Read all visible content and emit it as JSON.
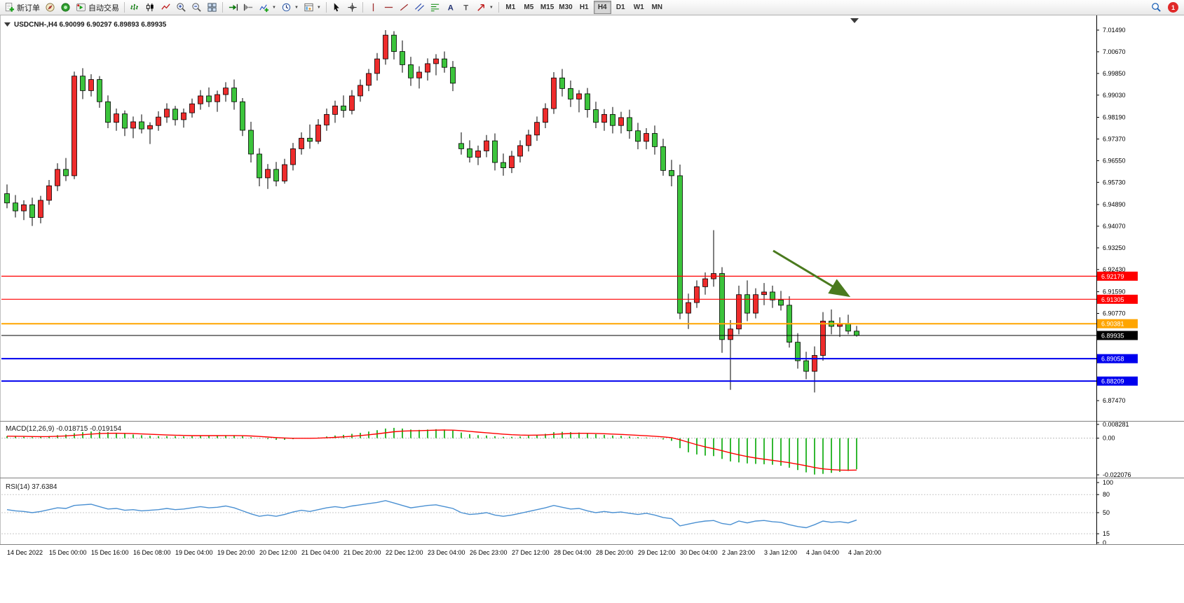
{
  "toolbar": {
    "new_order_label": "新订单",
    "auto_trading_label": "自动交易",
    "timeframes": [
      "M1",
      "M5",
      "M15",
      "M30",
      "H1",
      "H4",
      "D1",
      "W1",
      "MN"
    ],
    "active_timeframe": "H4",
    "notification_count": "1"
  },
  "chart_header": {
    "symbol": "USDCNH-,H4",
    "open": "6.90099",
    "high": "6.90297",
    "low": "6.89893",
    "close": "6.89935"
  },
  "chart_data": {
    "type": "candlestick",
    "symbol": "USDCNH-",
    "timeframe": "H4",
    "price_scale": {
      "top": 7.01834,
      "bottom": 6.86729
    },
    "price_axis_labels": [
      "7.01490",
      "7.00670",
      "6.99850",
      "6.99030",
      "6.98190",
      "6.97370",
      "6.96550",
      "6.95730",
      "6.94890",
      "6.94070",
      "6.93250",
      "6.92430",
      "6.91590",
      "6.90770",
      "6.87470"
    ],
    "bull_color": "#ee2c2c",
    "bear_color": "#3cc43c",
    "levels": [
      {
        "label": "6.92179",
        "price": 6.92179,
        "color": "#ff0000",
        "width": 1.2
      },
      {
        "label": "6.91305",
        "price": 6.91305,
        "color": "#ff0000",
        "width": 1.2
      },
      {
        "label": "6.90381",
        "price": 6.90381,
        "color": "#ffa500",
        "width": 2
      },
      {
        "label": "6.89935",
        "price": 6.89935,
        "color": "#000000",
        "width": 1
      },
      {
        "label": "6.89058",
        "price": 6.89058,
        "color": "#0000ee",
        "width": 2
      },
      {
        "label": "6.88209",
        "price": 6.88209,
        "color": "#0000ee",
        "width": 2
      }
    ],
    "x_labels": [
      "14 Dec 2022",
      "15 Dec 00:00",
      "15 Dec 16:00",
      "16 Dec 08:00",
      "19 Dec 04:00",
      "19 Dec 20:00",
      "20 Dec 12:00",
      "21 Dec 04:00",
      "21 Dec 20:00",
      "22 Dec 12:00",
      "23 Dec 04:00",
      "26 Dec 23:00",
      "27 Dec 12:00",
      "28 Dec 04:00",
      "28 Dec 20:00",
      "29 Dec 12:00",
      "30 Dec 04:00",
      "2 Jan 23:00",
      "3 Jan 12:00",
      "4 Jan 04:00",
      "4 Jan 20:00"
    ],
    "candles": [
      [
        6.953,
        6.9565,
        6.9475,
        6.9495
      ],
      [
        6.9495,
        6.9525,
        6.944,
        6.9465
      ],
      [
        6.9465,
        6.9505,
        6.943,
        6.9488
      ],
      [
        6.9488,
        6.9515,
        6.9408,
        6.944
      ],
      [
        6.944,
        6.9522,
        6.9418,
        6.9505
      ],
      [
        6.9505,
        6.9582,
        6.9488,
        6.956
      ],
      [
        6.956,
        6.9645,
        6.954,
        6.9622
      ],
      [
        6.9622,
        6.9665,
        6.9578,
        6.9598
      ],
      [
        6.9598,
        6.9992,
        6.9585,
        6.9975
      ],
      [
        6.9975,
        7.0005,
        6.9888,
        6.992
      ],
      [
        6.992,
        6.9982,
        6.9898,
        6.9962
      ],
      [
        6.9962,
        6.9975,
        6.9855,
        6.9878
      ],
      [
        6.9878,
        6.9902,
        6.9778,
        6.98
      ],
      [
        6.98,
        6.9852,
        6.9768,
        6.9832
      ],
      [
        6.9832,
        6.9845,
        6.9748,
        6.9778
      ],
      [
        6.9778,
        6.9822,
        6.974,
        6.9802
      ],
      [
        6.9802,
        6.983,
        6.9758,
        6.9775
      ],
      [
        6.9775,
        6.98,
        6.9718,
        6.9788
      ],
      [
        6.9788,
        6.9842,
        6.9768,
        6.982
      ],
      [
        6.982,
        6.9872,
        6.9798,
        6.985
      ],
      [
        6.985,
        6.9862,
        6.9788,
        6.981
      ],
      [
        6.981,
        6.9852,
        6.978,
        6.9836
      ],
      [
        6.9836,
        6.989,
        6.9818,
        6.987
      ],
      [
        6.987,
        6.9922,
        6.9848,
        6.99
      ],
      [
        6.99,
        6.9932,
        6.9858,
        6.9878
      ],
      [
        6.9878,
        6.992,
        6.984,
        6.9905
      ],
      [
        6.9905,
        6.9952,
        6.9878,
        6.993
      ],
      [
        6.993,
        6.9962,
        6.9848,
        6.9878
      ],
      [
        6.9878,
        6.9892,
        6.9748,
        6.977
      ],
      [
        6.977,
        6.9802,
        6.9648,
        6.968
      ],
      [
        6.968,
        6.9702,
        6.9558,
        6.959
      ],
      [
        6.959,
        6.9642,
        6.9548,
        6.9622
      ],
      [
        6.9622,
        6.965,
        6.9558,
        6.9578
      ],
      [
        6.9578,
        6.9662,
        6.9568,
        6.964
      ],
      [
        6.964,
        6.9722,
        6.9618,
        6.97
      ],
      [
        6.97,
        6.9762,
        6.9678,
        6.974
      ],
      [
        6.974,
        6.9792,
        6.97,
        6.9728
      ],
      [
        6.9728,
        6.9812,
        6.9718,
        6.979
      ],
      [
        6.979,
        6.9852,
        6.9768,
        6.983
      ],
      [
        6.983,
        6.9882,
        6.9798,
        6.9862
      ],
      [
        6.9862,
        6.9902,
        6.9818,
        6.9845
      ],
      [
        6.9845,
        6.9922,
        6.983,
        6.99
      ],
      [
        6.99,
        6.9962,
        6.9878,
        6.994
      ],
      [
        6.994,
        7.0002,
        6.9918,
        6.9985
      ],
      [
        6.9985,
        7.0062,
        6.9958,
        7.004
      ],
      [
        7.004,
        7.0149,
        7.0018,
        7.013
      ],
      [
        7.013,
        7.0145,
        7.0038,
        7.0068
      ],
      [
        7.0068,
        7.011,
        6.9988,
        7.0018
      ],
      [
        7.0018,
        7.0048,
        6.9938,
        6.9968
      ],
      [
        6.9968,
        7.0012,
        6.9928,
        6.999
      ],
      [
        6.999,
        7.0042,
        6.9958,
        7.0022
      ],
      [
        7.0022,
        7.0058,
        6.9978,
        7.004
      ],
      [
        7.004,
        7.0068,
        6.9988,
        7.0008
      ],
      [
        7.0008,
        7.0032,
        6.9918,
        6.9948
      ],
      [
        6.972,
        6.9762,
        6.9678,
        6.97
      ],
      [
        6.97,
        6.9732,
        6.9648,
        6.9668
      ],
      [
        6.9668,
        6.9712,
        6.9638,
        6.9692
      ],
      [
        6.9692,
        6.9752,
        6.9668,
        6.973
      ],
      [
        6.973,
        6.9758,
        6.9618,
        6.9648
      ],
      [
        6.9648,
        6.9682,
        6.9598,
        6.9628
      ],
      [
        6.9628,
        6.9692,
        6.9608,
        6.9672
      ],
      [
        6.9672,
        6.9732,
        6.9648,
        6.9712
      ],
      [
        6.9712,
        6.9772,
        6.969,
        6.9752
      ],
      [
        6.9752,
        6.9822,
        6.973,
        6.98
      ],
      [
        6.98,
        6.9872,
        6.9778,
        6.9852
      ],
      [
        6.9852,
        6.999,
        6.9832,
        6.9968
      ],
      [
        6.9968,
        7.0002,
        6.9898,
        6.9928
      ],
      [
        6.9928,
        6.9958,
        6.9858,
        6.9888
      ],
      [
        6.9888,
        6.9922,
        6.9838,
        6.9908
      ],
      [
        6.9908,
        6.993,
        6.9818,
        6.9848
      ],
      [
        6.9848,
        6.9878,
        6.9778,
        6.98
      ],
      [
        6.98,
        6.985,
        6.9768,
        6.983
      ],
      [
        6.983,
        6.9858,
        6.9758,
        6.9788
      ],
      [
        6.9788,
        6.984,
        6.9758,
        6.9818
      ],
      [
        6.9818,
        6.9848,
        6.9738,
        6.9768
      ],
      [
        6.9768,
        6.9798,
        6.9698,
        6.9728
      ],
      [
        6.9728,
        6.9778,
        6.9698,
        6.9758
      ],
      [
        6.9758,
        6.9788,
        6.9678,
        6.9708
      ],
      [
        6.9708,
        6.9738,
        6.9598,
        6.9618
      ],
      [
        6.9618,
        6.9658,
        6.9558,
        6.9598
      ],
      [
        6.9598,
        6.964,
        6.9055,
        6.9078
      ],
      [
        6.9078,
        6.9152,
        6.9018,
        6.9118
      ],
      [
        6.9118,
        6.9202,
        6.9098,
        6.9178
      ],
      [
        6.9178,
        6.9232,
        6.9148,
        6.9208
      ],
      [
        6.9208,
        6.9392,
        6.9178,
        6.9228
      ],
      [
        6.9228,
        6.9252,
        6.8928,
        6.8978
      ],
      [
        6.8978,
        6.9052,
        6.8788,
        6.9018
      ],
      [
        6.9018,
        6.9182,
        6.8998,
        6.9148
      ],
      [
        6.9148,
        6.9202,
        6.9048,
        6.9078
      ],
      [
        6.9078,
        6.9172,
        6.9058,
        6.9148
      ],
      [
        6.9148,
        6.9192,
        6.9108,
        6.9158
      ],
      [
        6.9158,
        6.9182,
        6.9098,
        6.9128
      ],
      [
        6.9128,
        6.9162,
        6.9088,
        6.9108
      ],
      [
        6.9108,
        6.9142,
        6.8948,
        6.8968
      ],
      [
        6.8968,
        6.9002,
        6.8868,
        6.8898
      ],
      [
        6.8898,
        6.8932,
        6.8828,
        6.8858
      ],
      [
        6.8858,
        6.8952,
        6.8778,
        6.8918
      ],
      [
        6.8918,
        6.9082,
        6.8898,
        6.9048
      ],
      [
        6.9048,
        6.9092,
        6.8998,
        6.9028
      ],
      [
        6.9028,
        6.9062,
        6.8988,
        6.9038
      ],
      [
        6.9038,
        6.9072,
        6.8998,
        6.901
      ],
      [
        6.90099,
        6.90297,
        6.89893,
        6.89935
      ]
    ],
    "indicators": {
      "macd": {
        "title": "MACD(12,26,9)",
        "value_main": "-0.018715",
        "value_signal": "-0.019154",
        "scale_top": 0.008281,
        "scale_bottom": -0.022076,
        "axis_labels": [
          "0.008281",
          "0.00",
          "-0.022076"
        ],
        "histogram_color": "#33b833",
        "signal_color": "#ff0000",
        "histogram": [
          0.0012,
          0.001,
          0.0008,
          0.0006,
          0.0008,
          0.0012,
          0.0018,
          0.0022,
          0.003,
          0.0036,
          0.004,
          0.004,
          0.0036,
          0.0031,
          0.0026,
          0.0022,
          0.0018,
          0.0014,
          0.0012,
          0.0012,
          0.0012,
          0.0011,
          0.0012,
          0.0014,
          0.0015,
          0.0016,
          0.0017,
          0.0016,
          0.0012,
          0.0006,
          -0.0002,
          -0.0006,
          -0.001,
          -0.001,
          -0.0006,
          -0.0002,
          0.0,
          0.0004,
          0.001,
          0.0016,
          0.002,
          0.0026,
          0.0032,
          0.004,
          0.0048,
          0.0058,
          0.0062,
          0.0058,
          0.0052,
          0.005,
          0.0052,
          0.0054,
          0.0052,
          0.0046,
          0.0034,
          0.0024,
          0.0018,
          0.0016,
          0.0012,
          0.0008,
          0.0008,
          0.001,
          0.0014,
          0.002,
          0.0026,
          0.0036,
          0.0038,
          0.0036,
          0.0034,
          0.003,
          0.0024,
          0.002,
          0.0016,
          0.0014,
          0.001,
          0.0006,
          0.0004,
          0.0,
          -0.0008,
          -0.0016,
          -0.006,
          -0.0085,
          -0.0098,
          -0.0105,
          -0.0108,
          -0.0125,
          -0.014,
          -0.0146,
          -0.0152,
          -0.0155,
          -0.0157,
          -0.016,
          -0.0166,
          -0.0178,
          -0.0192,
          -0.0206,
          -0.0219,
          -0.0215,
          -0.0209,
          -0.0203,
          -0.0197,
          -0.018715
        ]
      },
      "rsi": {
        "title": "RSI(14)",
        "value": "37.6384",
        "axis_labels": [
          "100",
          "80",
          "50",
          "15",
          "0"
        ],
        "level_lines": [
          80,
          50,
          15
        ],
        "line_color": "#4a90d2",
        "values": [
          55,
          53,
          52,
          50,
          52,
          55,
          58,
          57,
          62,
          63,
          64,
          60,
          56,
          57,
          54,
          55,
          53,
          54,
          55,
          57,
          55,
          56,
          58,
          60,
          58,
          59,
          61,
          58,
          53,
          48,
          44,
          46,
          44,
          47,
          51,
          54,
          52,
          55,
          58,
          60,
          58,
          61,
          63,
          65,
          67,
          70,
          66,
          62,
          58,
          60,
          62,
          63,
          60,
          57,
          50,
          47,
          48,
          50,
          46,
          44,
          46,
          49,
          52,
          55,
          58,
          62,
          59,
          56,
          57,
          53,
          50,
          52,
          50,
          51,
          49,
          47,
          49,
          46,
          42,
          40,
          28,
          31,
          34,
          36,
          37,
          32,
          30,
          36,
          33,
          36,
          37,
          35,
          34,
          30,
          27,
          25,
          30,
          36,
          34,
          35,
          33,
          37.6384
        ]
      }
    },
    "annotation_arrow": {
      "color": "#4a7a1e"
    }
  }
}
